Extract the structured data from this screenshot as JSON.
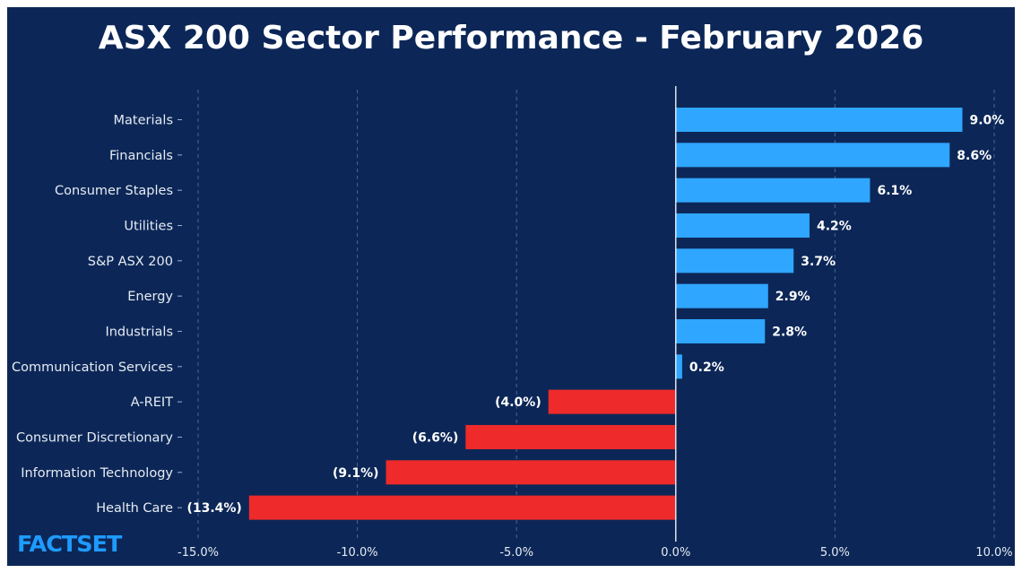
{
  "logo": "FACTSET",
  "colors": {
    "background": "#0c2757",
    "positive": "#2fa6ff",
    "negative": "#ee2a2a",
    "logo": "#1e9bff"
  },
  "chart_data": {
    "type": "bar",
    "orientation": "horizontal",
    "title": "ASX 200 Sector Performance - February 2026",
    "xlabel": "",
    "ylabel": "",
    "xlim": [
      -15,
      10
    ],
    "xticks": [
      -15,
      -10,
      -5,
      0,
      5,
      10
    ],
    "xtick_labels": [
      "-15.0%",
      "-10.0%",
      "-5.0%",
      "0.0%",
      "5.0%",
      "10.0%"
    ],
    "grid": "vertical dashed",
    "categories": [
      "Materials",
      "Financials",
      "Consumer Staples",
      "Utilities",
      "S&P ASX 200",
      "Energy",
      "Industrials",
      "Communication Services",
      "A-REIT",
      "Consumer Discretionary",
      "Information Technology",
      "Health Care"
    ],
    "values": [
      9.0,
      8.6,
      6.1,
      4.2,
      3.7,
      2.9,
      2.8,
      0.2,
      -4.0,
      -6.6,
      -9.1,
      -13.4
    ],
    "data_labels": [
      "9.0%",
      "8.6%",
      "6.1%",
      "4.2%",
      "3.7%",
      "2.9%",
      "2.8%",
      "0.2%",
      "(4.0%)",
      "(6.6%)",
      "(9.1%)",
      "(13.4%)"
    ]
  }
}
